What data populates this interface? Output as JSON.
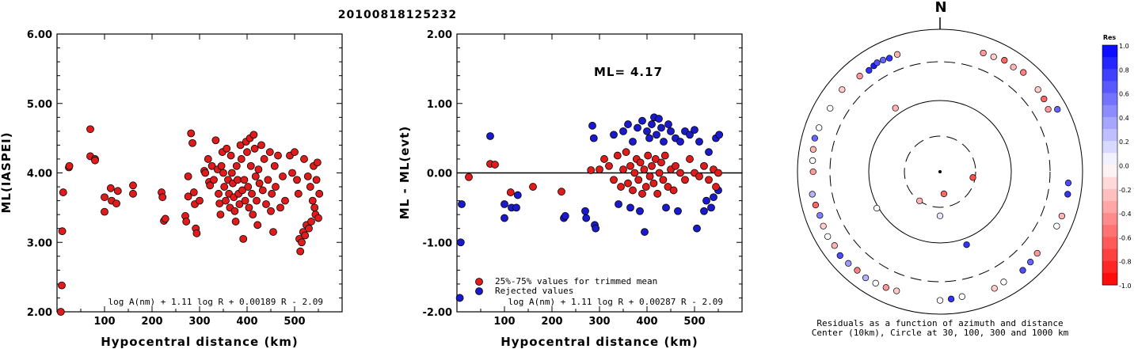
{
  "title": "20100818125232",
  "colors": {
    "red": "#e01b1b",
    "blue": "#1a1acc"
  },
  "chart_data": [
    {
      "type": "scatter",
      "xlabel": "Hypocentral distance (km)",
      "ylabel": "ML(IASPEI)",
      "xlim": [
        0,
        600
      ],
      "ylim": [
        2.0,
        6.0
      ],
      "xticks": [
        "100",
        "200",
        "300",
        "400",
        "500"
      ],
      "yticks": [
        "2.00",
        "3.00",
        "4.00",
        "5.00",
        "6.00"
      ],
      "formula": "log A(nm) + 1.11 log R + 0.00189 R - 2.09",
      "points": [
        [
          8,
          2.0
        ],
        [
          10,
          2.38
        ],
        [
          11,
          3.16
        ],
        [
          13,
          3.72
        ],
        [
          25,
          4.08
        ],
        [
          26,
          4.1
        ],
        [
          70,
          4.63
        ],
        [
          70,
          4.24
        ],
        [
          80,
          4.2
        ],
        [
          80,
          4.18
        ],
        [
          100,
          3.65
        ],
        [
          100,
          3.44
        ],
        [
          113,
          3.78
        ],
        [
          115,
          3.6
        ],
        [
          125,
          3.56
        ],
        [
          128,
          3.74
        ],
        [
          160,
          3.82
        ],
        [
          160,
          3.7
        ],
        [
          220,
          3.72
        ],
        [
          222,
          3.65
        ],
        [
          225,
          3.31
        ],
        [
          228,
          3.34
        ],
        [
          270,
          3.38
        ],
        [
          272,
          3.3
        ],
        [
          276,
          3.66
        ],
        [
          276,
          3.95
        ],
        [
          282,
          4.57
        ],
        [
          285,
          4.43
        ],
        [
          288,
          3.72
        ],
        [
          290,
          3.55
        ],
        [
          292,
          3.2
        ],
        [
          294,
          3.13
        ],
        [
          300,
          3.6
        ],
        [
          310,
          4.03
        ],
        [
          312,
          4.0
        ],
        [
          318,
          4.2
        ],
        [
          320,
          3.87
        ],
        [
          322,
          3.82
        ],
        [
          326,
          4.1
        ],
        [
          330,
          3.9
        ],
        [
          334,
          4.47
        ],
        [
          338,
          4.05
        ],
        [
          340,
          3.7
        ],
        [
          342,
          3.56
        ],
        [
          344,
          3.4
        ],
        [
          346,
          4.1
        ],
        [
          348,
          4.3
        ],
        [
          350,
          4.0
        ],
        [
          352,
          3.8
        ],
        [
          355,
          3.6
        ],
        [
          357,
          4.35
        ],
        [
          360,
          3.9
        ],
        [
          362,
          3.7
        ],
        [
          364,
          3.5
        ],
        [
          366,
          4.25
        ],
        [
          368,
          4.0
        ],
        [
          370,
          3.85
        ],
        [
          372,
          3.65
        ],
        [
          374,
          3.45
        ],
        [
          376,
          3.3
        ],
        [
          378,
          4.1
        ],
        [
          380,
          3.9
        ],
        [
          382,
          3.7
        ],
        [
          384,
          3.55
        ],
        [
          386,
          4.4
        ],
        [
          388,
          4.2
        ],
        [
          390,
          3.75
        ],
        [
          392,
          3.05
        ],
        [
          394,
          3.9
        ],
        [
          396,
          3.6
        ],
        [
          398,
          4.45
        ],
        [
          400,
          4.3
        ],
        [
          402,
          3.8
        ],
        [
          404,
          3.5
        ],
        [
          406,
          4.5
        ],
        [
          408,
          4.1
        ],
        [
          410,
          3.7
        ],
        [
          412,
          3.4
        ],
        [
          414,
          4.55
        ],
        [
          416,
          4.35
        ],
        [
          418,
          3.95
        ],
        [
          420,
          3.6
        ],
        [
          422,
          3.25
        ],
        [
          424,
          4.05
        ],
        [
          426,
          3.85
        ],
        [
          430,
          4.4
        ],
        [
          433,
          3.75
        ],
        [
          436,
          4.2
        ],
        [
          440,
          3.55
        ],
        [
          444,
          3.9
        ],
        [
          448,
          4.3
        ],
        [
          450,
          3.45
        ],
        [
          452,
          3.7
        ],
        [
          455,
          3.15
        ],
        [
          458,
          4.1
        ],
        [
          460,
          3.8
        ],
        [
          465,
          4.25
        ],
        [
          470,
          3.5
        ],
        [
          475,
          3.95
        ],
        [
          480,
          3.6
        ],
        [
          490,
          4.25
        ],
        [
          495,
          4.0
        ],
        [
          500,
          4.3
        ],
        [
          505,
          3.9
        ],
        [
          508,
          3.7
        ],
        [
          510,
          3.05
        ],
        [
          512,
          2.87
        ],
        [
          515,
          3.0
        ],
        [
          518,
          3.15
        ],
        [
          520,
          4.2
        ],
        [
          522,
          3.1
        ],
        [
          525,
          3.25
        ],
        [
          528,
          3.95
        ],
        [
          530,
          3.2
        ],
        [
          533,
          3.8
        ],
        [
          535,
          3.3
        ],
        [
          538,
          3.6
        ],
        [
          540,
          4.1
        ],
        [
          542,
          3.5
        ],
        [
          544,
          3.4
        ],
        [
          546,
          3.9
        ],
        [
          548,
          4.15
        ],
        [
          550,
          3.35
        ],
        [
          552,
          3.7
        ]
      ]
    },
    {
      "type": "scatter",
      "xlabel": "Hypocentral distance (km)",
      "ylabel": "ML - ML(evt)",
      "xlim": [
        0,
        600
      ],
      "ylim": [
        -2.0,
        2.0
      ],
      "xticks": [
        "100",
        "200",
        "300",
        "400",
        "500"
      ],
      "yticks": [
        "-2.00",
        "-1.00",
        "0.00",
        "1.00",
        "2.00"
      ],
      "ml_label": "ML=",
      "ml_value": "4.17",
      "legend": [
        "25%-75% values for trimmed mean",
        "Rejected values"
      ],
      "formula": "log A(nm) + 1.11 log R + 0.00287 R - 2.09",
      "trimmed": [
        [
          25,
          -0.06
        ],
        [
          70,
          0.13
        ],
        [
          80,
          0.12
        ],
        [
          113,
          -0.28
        ],
        [
          160,
          -0.2
        ],
        [
          220,
          -0.27
        ],
        [
          282,
          0.04
        ],
        [
          300,
          0.05
        ],
        [
          310,
          0.2
        ],
        [
          320,
          0.1
        ],
        [
          330,
          -0.1
        ],
        [
          338,
          0.25
        ],
        [
          345,
          -0.2
        ],
        [
          350,
          0.05
        ],
        [
          356,
          0.3
        ],
        [
          360,
          -0.15
        ],
        [
          365,
          0.1
        ],
        [
          370,
          -0.25
        ],
        [
          374,
          0.0
        ],
        [
          378,
          0.2
        ],
        [
          382,
          -0.1
        ],
        [
          386,
          0.15
        ],
        [
          390,
          -0.3
        ],
        [
          394,
          0.05
        ],
        [
          398,
          -0.2
        ],
        [
          402,
          0.25
        ],
        [
          406,
          -0.05
        ],
        [
          410,
          0.1
        ],
        [
          414,
          -0.15
        ],
        [
          418,
          0.2
        ],
        [
          422,
          -0.3
        ],
        [
          426,
          0.0
        ],
        [
          430,
          0.15
        ],
        [
          434,
          -0.1
        ],
        [
          438,
          0.25
        ],
        [
          444,
          -0.2
        ],
        [
          450,
          0.05
        ],
        [
          456,
          -0.25
        ],
        [
          460,
          0.1
        ],
        [
          470,
          0.0
        ],
        [
          480,
          -0.1
        ],
        [
          490,
          0.2
        ],
        [
          500,
          0.0
        ],
        [
          510,
          -0.05
        ],
        [
          520,
          0.1
        ],
        [
          530,
          -0.1
        ],
        [
          540,
          0.05
        ],
        [
          545,
          -0.2
        ],
        [
          550,
          0.0
        ]
      ],
      "rejected": [
        [
          6,
          -1.8
        ],
        [
          8,
          -1.0
        ],
        [
          10,
          -0.45
        ],
        [
          70,
          0.53
        ],
        [
          100,
          -0.45
        ],
        [
          100,
          -0.65
        ],
        [
          115,
          -0.5
        ],
        [
          125,
          -0.5
        ],
        [
          128,
          -0.32
        ],
        [
          225,
          -0.65
        ],
        [
          228,
          -0.62
        ],
        [
          270,
          -0.55
        ],
        [
          272,
          -0.65
        ],
        [
          285,
          0.68
        ],
        [
          288,
          0.5
        ],
        [
          290,
          -0.75
        ],
        [
          292,
          -0.8
        ],
        [
          330,
          0.55
        ],
        [
          340,
          -0.45
        ],
        [
          350,
          0.6
        ],
        [
          360,
          0.7
        ],
        [
          365,
          -0.5
        ],
        [
          370,
          0.45
        ],
        [
          380,
          0.65
        ],
        [
          385,
          -0.55
        ],
        [
          390,
          0.75
        ],
        [
          395,
          -0.85
        ],
        [
          400,
          0.6
        ],
        [
          405,
          0.5
        ],
        [
          410,
          0.7
        ],
        [
          415,
          0.8
        ],
        [
          420,
          0.55
        ],
        [
          425,
          0.78
        ],
        [
          430,
          0.65
        ],
        [
          435,
          0.45
        ],
        [
          440,
          -0.5
        ],
        [
          445,
          0.7
        ],
        [
          450,
          0.6
        ],
        [
          460,
          0.5
        ],
        [
          465,
          -0.55
        ],
        [
          470,
          0.45
        ],
        [
          480,
          0.6
        ],
        [
          490,
          0.55
        ],
        [
          500,
          0.62
        ],
        [
          505,
          -0.8
        ],
        [
          510,
          0.45
        ],
        [
          520,
          -0.55
        ],
        [
          525,
          -0.4
        ],
        [
          530,
          0.3
        ],
        [
          535,
          -0.5
        ],
        [
          540,
          -0.35
        ],
        [
          545,
          0.5
        ],
        [
          550,
          -0.25
        ],
        [
          552,
          0.55
        ]
      ]
    },
    {
      "type": "scatter",
      "polar": true,
      "north_label": "N",
      "caption_line1": "Residuals as a function of azimuth and distance",
      "caption_line2": "Center (10km), Circle at 30, 100, 300 and 1000 km",
      "colorbar_title": "Res",
      "colorbar_ticks": [
        "1.0",
        "0.8",
        "0.6",
        "0.4",
        "0.2",
        "0.0",
        "-0.2",
        "-0.4",
        "-0.6",
        "-0.8",
        "-1.0"
      ],
      "rings_km": [
        30,
        100,
        300,
        1000
      ],
      "points": [
        [
          100,
          28,
          -0.7
        ],
        [
          170,
          20,
          -0.6
        ],
        [
          215,
          30,
          -0.3
        ],
        [
          180,
          40,
          0.1
        ],
        [
          325,
          120,
          -0.3
        ],
        [
          240,
          105,
          0.0
        ],
        [
          160,
          120,
          0.8
        ],
        [
          20,
          550,
          -0.4
        ],
        [
          25,
          560,
          -0.2
        ],
        [
          30,
          600,
          -0.6
        ],
        [
          35,
          580,
          -0.3
        ],
        [
          40,
          620,
          -0.5
        ],
        [
          50,
          580,
          -0.2
        ],
        [
          55,
          560,
          -0.6
        ],
        [
          60,
          520,
          -0.4
        ],
        [
          62,
          700,
          0.6
        ],
        [
          95,
          600,
          0.7
        ],
        [
          100,
          620,
          0.8
        ],
        [
          110,
          620,
          -0.3
        ],
        [
          115,
          600,
          0.0
        ],
        [
          130,
          560,
          -0.4
        ],
        [
          135,
          580,
          0.6
        ],
        [
          140,
          600,
          0.7
        ],
        [
          150,
          570,
          0.0
        ],
        [
          155,
          600,
          -0.2
        ],
        [
          170,
          560,
          0.0
        ],
        [
          175,
          580,
          0.8
        ],
        [
          180,
          600,
          0.0
        ],
        [
          200,
          560,
          -0.2
        ],
        [
          205,
          580,
          -0.4
        ],
        [
          210,
          600,
          0.0
        ],
        [
          215,
          620,
          0.3
        ],
        [
          220,
          600,
          -0.5
        ],
        [
          225,
          620,
          0.4
        ],
        [
          230,
          640,
          0.7
        ],
        [
          235,
          600,
          -0.3
        ],
        [
          240,
          620,
          0.0
        ],
        [
          245,
          600,
          -0.2
        ],
        [
          250,
          580,
          0.5
        ],
        [
          255,
          600,
          -0.6
        ],
        [
          260,
          620,
          0.3
        ],
        [
          270,
          560,
          -0.4
        ],
        [
          275,
          580,
          0.0
        ],
        [
          280,
          600,
          -0.3
        ],
        [
          285,
          620,
          0.6
        ],
        [
          290,
          600,
          0.0
        ],
        [
          300,
          560,
          0.0
        ],
        [
          310,
          580,
          -0.2
        ],
        [
          320,
          520,
          -0.4
        ],
        [
          325,
          500,
          0.8
        ],
        [
          328,
          520,
          0.9
        ],
        [
          330,
          540,
          0.7
        ],
        [
          333,
          530,
          0.6
        ],
        [
          336,
          510,
          0.8
        ],
        [
          340,
          520,
          -0.3
        ]
      ]
    }
  ]
}
